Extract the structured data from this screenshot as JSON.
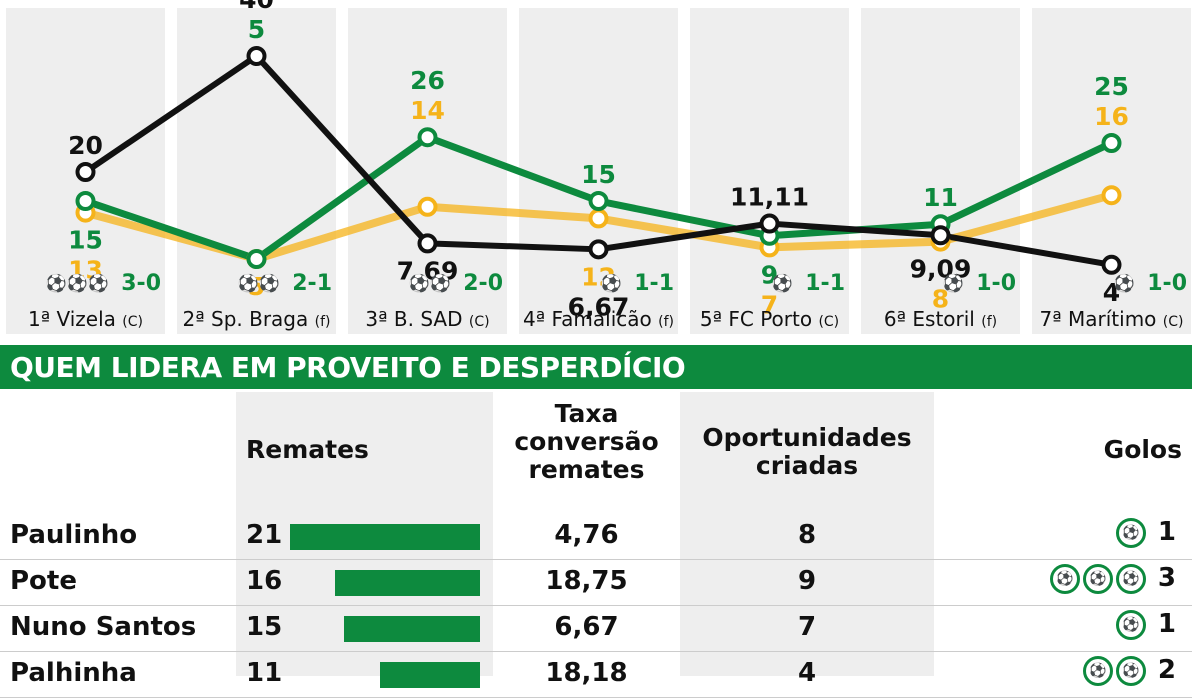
{
  "colors": {
    "sporting_green": "#0d8a3e",
    "orange": "#f5b31a",
    "black": "#111111",
    "band": "#eeeeee"
  },
  "chart_data": {
    "type": "line",
    "categories": [
      "1ª Vizela",
      "2ª Sp. Braga",
      "3ª B. SAD",
      "4ª Famalicão",
      "5ª FC Porto",
      "6ª Estoril",
      "7ª Marítimo"
    ],
    "venue": [
      "(C)",
      "(f)",
      "(C)",
      "(f)",
      "(C)",
      "(f)",
      "(C)"
    ],
    "results": [
      "3-0",
      "2-1",
      "2-0",
      "1-1",
      "1-1",
      "1-0",
      "1-0"
    ],
    "goal_icons": [
      3,
      2,
      2,
      1,
      1,
      1,
      1
    ],
    "series": [
      {
        "color": "#111111",
        "values": [
          20,
          40,
          7.69,
          6.67,
          11.11,
          9.09,
          4
        ],
        "labels": [
          "20",
          "40",
          "7,69",
          "6,67",
          "11,11",
          "9,09",
          "4"
        ]
      },
      {
        "color": "#0d8a3e",
        "values": [
          15,
          5,
          26,
          15,
          9,
          11,
          25
        ],
        "labels": [
          "15",
          "5",
          "26",
          "15",
          "9",
          "11",
          "25"
        ]
      },
      {
        "color": "#f5b31a",
        "values": [
          13,
          5,
          14,
          12,
          7,
          8,
          16
        ],
        "labels": [
          "13",
          "5",
          "14",
          "12",
          "7",
          "8",
          "16"
        ]
      }
    ],
    "title": "",
    "xlabel": "",
    "ylabel": "",
    "grid": false
  },
  "table": {
    "title": "QUEM LIDERA EM PROVEITO E DESPERDÍCIO",
    "headers": {
      "remates": "Remates",
      "taxa_1": "Taxa",
      "taxa_2": "conversão",
      "taxa_3": "remates",
      "oport_1": "Oportunidades",
      "oport_2": "criadas",
      "golos": "Golos"
    },
    "rows": [
      {
        "name": "Paulinho",
        "remates": "21",
        "remates_value": 21,
        "taxa": "4,76",
        "oport": "8",
        "golos": "1",
        "golos_value": 1
      },
      {
        "name": "Pote",
        "remates": "16",
        "remates_value": 16,
        "taxa": "18,75",
        "oport": "9",
        "golos": "3",
        "golos_value": 3
      },
      {
        "name": "Nuno Santos",
        "remates": "15",
        "remates_value": 15,
        "taxa": "6,67",
        "oport": "7",
        "golos": "1",
        "golos_value": 1
      },
      {
        "name": "Palhinha",
        "remates": "11",
        "remates_value": 11,
        "taxa": "18,18",
        "oport": "4",
        "golos": "2",
        "golos_value": 2
      }
    ]
  }
}
